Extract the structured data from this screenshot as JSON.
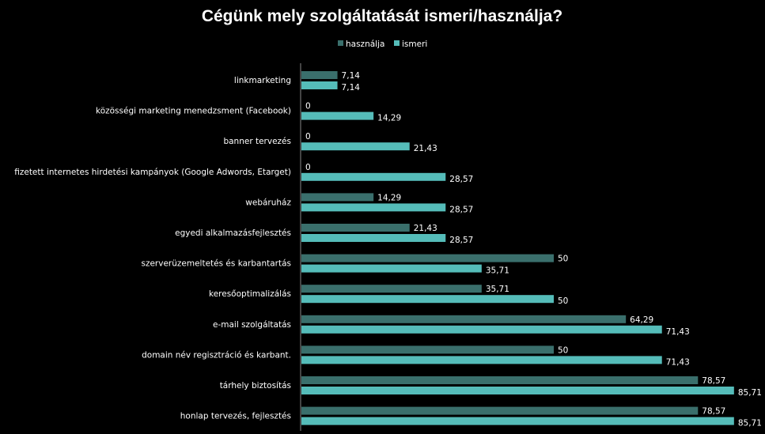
{
  "chart_data": {
    "type": "bar",
    "orientation": "horizontal",
    "title": "Cégünk mely szolgáltatását ismeri/használja?",
    "xlabel": "",
    "ylabel": "",
    "xlim": [
      0,
      90
    ],
    "grid": false,
    "legend_position": "top",
    "categories": [
      "linkmarketing",
      "közösségi marketing menedzsment (Facebook)",
      "banner tervezés",
      "fizetett internetes hirdetési kampányok (Google Adwords, Etarget)",
      "webáruház",
      "egyedi alkalmazásfejlesztés",
      "szerverüzemeltetés és karbantartás",
      "keresőoptimalizálás",
      "e-mail szolgáltatás",
      "domain név regisztráció és karbant.",
      "tárhely biztosítás",
      "honlap tervezés, fejlesztés"
    ],
    "series": [
      {
        "name": "használja",
        "color": "#3a6f6c",
        "values": [
          7.14,
          0,
          0,
          0,
          14.29,
          21.43,
          50,
          35.71,
          64.29,
          50,
          78.57,
          78.57
        ],
        "labels": [
          "7,14",
          "0",
          "0",
          "0",
          "14,29",
          "21,43",
          "50",
          "35,71",
          "64,29",
          "50",
          "78,57",
          "78,57"
        ]
      },
      {
        "name": "ismeri",
        "color": "#55bcb9",
        "values": [
          7.14,
          14.29,
          21.43,
          28.57,
          28.57,
          28.57,
          35.71,
          50,
          71.43,
          71.43,
          85.71,
          85.71
        ],
        "labels": [
          "7,14",
          "14,29",
          "21,43",
          "28,57",
          "28,57",
          "28,57",
          "35,71",
          "50",
          "71,43",
          "71,43",
          "85,71",
          "85,71"
        ]
      }
    ]
  }
}
